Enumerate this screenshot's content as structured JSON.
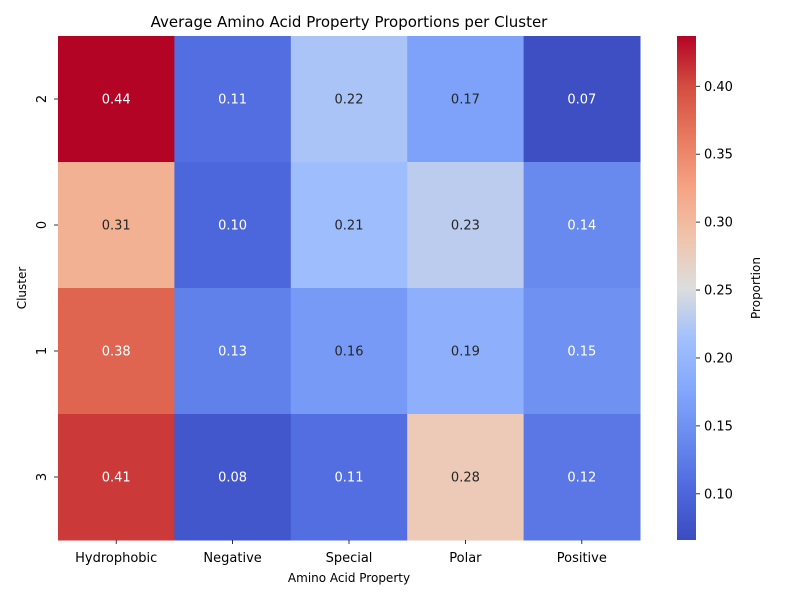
{
  "chart_data": {
    "type": "heatmap",
    "title": "Average Amino Acid Property Proportions per Cluster",
    "xlabel": "Amino Acid Property",
    "ylabel": "Cluster",
    "x_categories": [
      "Hydrophobic",
      "Negative",
      "Special",
      "Polar",
      "Positive"
    ],
    "y_categories": [
      "2",
      "0",
      "1",
      "3"
    ],
    "values": [
      [
        0.44,
        0.11,
        0.22,
        0.17,
        0.07
      ],
      [
        0.31,
        0.1,
        0.21,
        0.23,
        0.14
      ],
      [
        0.38,
        0.13,
        0.16,
        0.19,
        0.15
      ],
      [
        0.41,
        0.08,
        0.11,
        0.28,
        0.12
      ]
    ],
    "value_labels": [
      [
        "0.44",
        "0.11",
        "0.22",
        "0.17",
        "0.07"
      ],
      [
        "0.31",
        "0.10",
        "0.21",
        "0.23",
        "0.14"
      ],
      [
        "0.38",
        "0.13",
        "0.16",
        "0.19",
        "0.15"
      ],
      [
        "0.41",
        "0.08",
        "0.11",
        "0.28",
        "0.12"
      ]
    ],
    "colormap": "coolwarm",
    "vmin": 0.066,
    "vmax": 0.437,
    "colorbar": {
      "label": "Proportion",
      "ticks": [
        0.1,
        0.15,
        0.2,
        0.25,
        0.3,
        0.35,
        0.4
      ],
      "tick_labels": [
        "0.10",
        "0.15",
        "0.20",
        "0.25",
        "0.30",
        "0.35",
        "0.40"
      ]
    },
    "colors": {
      "cold": "#3b4cc0",
      "neutral": "#dddddd",
      "hot": "#b40426"
    },
    "grid": false,
    "legend": "colorbar-right"
  }
}
